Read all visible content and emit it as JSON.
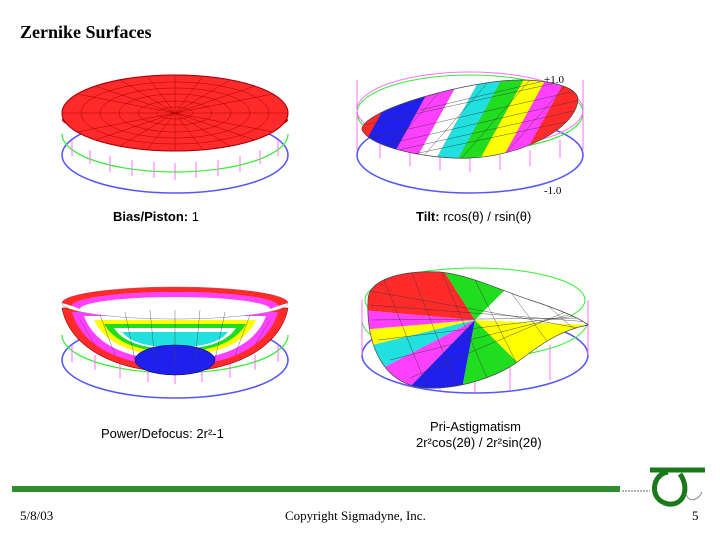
{
  "slide": {
    "title": "Zernike Surfaces",
    "scale_top": "+1.0",
    "scale_bottom": "-1.0"
  },
  "panels": [
    {
      "name_label": "Bias/Piston:",
      "formula": "1"
    },
    {
      "name_label": "Tilt:",
      "formula": "rcos(θ) / rsin(θ)"
    },
    {
      "name_label": "Power/Defocus:",
      "formula": "2r²-1"
    },
    {
      "name_label": "Pri-Astigmatism",
      "formula": "2r²cos(2θ) / 2r²sin(2θ)"
    }
  ],
  "footer": {
    "date": "5/8/03",
    "copyright": "Copyright Sigmadyne, Inc.",
    "page_number": "5"
  },
  "colors": {
    "red": "#ff2020",
    "magenta": "#ff40ff",
    "yellow": "#ffff00",
    "green": "#20dd20",
    "cyan": "#20e0e0",
    "blue": "#2020ee",
    "footer_bar": "#2f8f2f",
    "ring_pink": "#ff70ff",
    "ring_green": "#33ee33",
    "ring_blue": "#5555ff"
  }
}
